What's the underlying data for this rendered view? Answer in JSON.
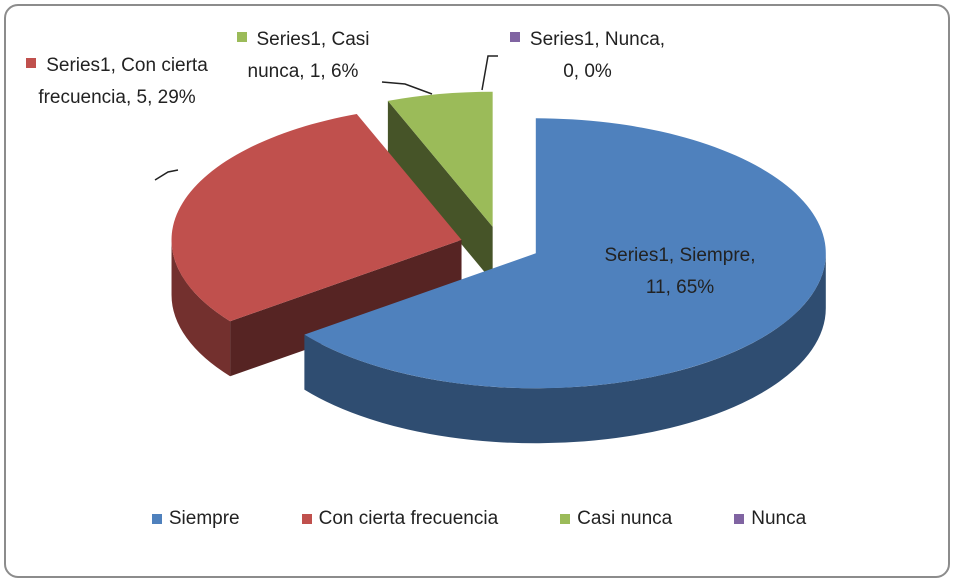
{
  "chart_data": {
    "type": "pie",
    "three_d": true,
    "exploded": true,
    "categories": [
      "Siempre",
      "Con cierta frecuencia",
      "Casi nunca",
      "Nunca"
    ],
    "values": [
      11,
      5,
      1,
      0
    ],
    "value_labels": [
      "Series1, Siempre, 11, 65%",
      "Series1, Con cierta frecuencia, 5, 29%",
      "Series1, Casi nunca, 1, 6%",
      "Series1, Nunca, 0, 0%"
    ],
    "colors": [
      "#4f81bd",
      "#c0504d",
      "#9bbb59",
      "#8064a2"
    ],
    "legend": "bottom"
  }
}
